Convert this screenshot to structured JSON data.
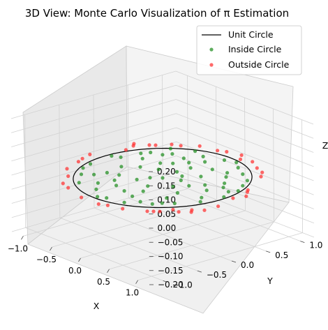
{
  "chart_data": {
    "type": "scatter",
    "title": "3D View: Monte Carlo Visualization of π Estimation",
    "xlabel": "X",
    "ylabel": "Y",
    "zlabel": "Z",
    "xlim": [
      -1.2,
      1.2
    ],
    "ylim": [
      -1.2,
      1.2
    ],
    "zlim": [
      -0.2,
      0.2
    ],
    "x_ticks": [
      "−1.0",
      "−0.5",
      "0.0",
      "0.5",
      "1.0"
    ],
    "y_ticks": [
      "−1.0",
      "−0.5",
      "0.0",
      "0.5",
      "1.0"
    ],
    "z_ticks": [
      "−0.20",
      "−0.15",
      "−0.10",
      "−0.05",
      "0.00",
      "0.05",
      "0.10",
      "0.15",
      "0.20"
    ],
    "x_tick_values": [
      -1.0,
      -0.5,
      0.0,
      0.5,
      1.0
    ],
    "y_tick_values": [
      -1.0,
      -0.5,
      0.0,
      0.5,
      1.0
    ],
    "z_tick_values": [
      -0.2,
      -0.15,
      -0.1,
      -0.05,
      0.0,
      0.05,
      0.1,
      0.15,
      0.2
    ],
    "grid": true,
    "legend_position": "upper-right",
    "circle": {
      "name": "Unit Circle",
      "radius": 1.0,
      "z": 0.0,
      "color": "#000000"
    },
    "inside_series": {
      "name": "Inside Circle",
      "color": "#1a8a1a"
    },
    "outside_series": {
      "name": "Outside Circle",
      "color": "#ff2a2a"
    },
    "inside_points": [
      [
        0.1,
        0.2
      ],
      [
        -0.3,
        0.4
      ],
      [
        0.5,
        -0.2
      ],
      [
        -0.6,
        -0.5
      ],
      [
        0.7,
        0.3
      ],
      [
        -0.2,
        -0.8
      ],
      [
        0.3,
        0.85
      ],
      [
        -0.85,
        0.1
      ],
      [
        0.9,
        -0.2
      ],
      [
        0.0,
        0.0
      ],
      [
        0.45,
        0.55
      ],
      [
        -0.55,
        0.6
      ],
      [
        0.6,
        -0.65
      ],
      [
        -0.4,
        -0.3
      ],
      [
        0.2,
        -0.45
      ],
      [
        -0.1,
        0.7
      ],
      [
        0.8,
        0.5
      ],
      [
        -0.7,
        -0.6
      ],
      [
        0.35,
        -0.85
      ],
      [
        -0.9,
        -0.3
      ],
      [
        0.15,
        0.95
      ],
      [
        -0.25,
        0.15
      ],
      [
        0.65,
        0.1
      ],
      [
        -0.45,
        0.85
      ],
      [
        0.5,
        0.75
      ],
      [
        -0.75,
        0.45
      ],
      [
        0.05,
        -0.6
      ],
      [
        -0.15,
        -0.25
      ],
      [
        0.25,
        0.35
      ],
      [
        -0.6,
        -0.1
      ],
      [
        0.75,
        -0.45
      ],
      [
        -0.35,
        -0.65
      ],
      [
        0.4,
        0.05
      ],
      [
        -0.05,
        0.45
      ],
      [
        0.85,
        0.25
      ],
      [
        -0.8,
        0.35
      ],
      [
        0.1,
        -0.9
      ],
      [
        -0.5,
        -0.8
      ],
      [
        0.55,
        -0.4
      ],
      [
        -0.2,
        0.55
      ],
      [
        0.3,
        -0.1
      ],
      [
        -0.65,
        0.25
      ],
      [
        0.7,
        0.65
      ],
      [
        -0.3,
        -0.45
      ],
      [
        0.15,
        0.6
      ],
      [
        -0.95,
        0.05
      ],
      [
        0.95,
        0.1
      ],
      [
        0.0,
        -0.95
      ],
      [
        0.0,
        0.9
      ],
      [
        -0.4,
        0.3
      ],
      [
        0.6,
        0.4
      ],
      [
        -0.1,
        -0.1
      ],
      [
        0.35,
        0.65
      ],
      [
        -0.55,
        -0.35
      ],
      [
        0.45,
        -0.7
      ],
      [
        -0.7,
        0.7
      ],
      [
        0.2,
        0.1
      ],
      [
        -0.15,
        -0.55
      ],
      [
        0.8,
        -0.1
      ],
      [
        -0.85,
        -0.45
      ],
      [
        0.5,
        0.2
      ],
      [
        -0.25,
        0.8
      ],
      [
        0.1,
        -0.3
      ],
      [
        -0.45,
        0.05
      ],
      [
        0.65,
        -0.55
      ],
      [
        -0.6,
        0.5
      ],
      [
        0.25,
        -0.65
      ],
      [
        -0.05,
        0.25
      ],
      [
        0.9,
        0.35
      ],
      [
        -0.35,
        0.6
      ]
    ],
    "outside_points": [
      [
        1.05,
        -0.45
      ],
      [
        1.1,
        -0.5
      ],
      [
        1.0,
        -0.6
      ],
      [
        1.15,
        -0.35
      ],
      [
        -1.05,
        0.45
      ],
      [
        -1.1,
        0.5
      ],
      [
        -0.95,
        0.6
      ],
      [
        -1.0,
        0.3
      ],
      [
        0.8,
        -0.8
      ],
      [
        0.75,
        -0.85
      ],
      [
        0.85,
        -0.75
      ],
      [
        0.3,
        -1.05
      ],
      [
        0.2,
        -1.1
      ],
      [
        -0.8,
        0.8
      ],
      [
        -0.7,
        0.85
      ],
      [
        -0.2,
        1.1
      ],
      [
        -0.3,
        1.05
      ],
      [
        0.95,
        0.45
      ],
      [
        1.05,
        0.15
      ],
      [
        1.0,
        0.4
      ],
      [
        -0.95,
        -0.6
      ],
      [
        -1.05,
        -0.35
      ],
      [
        0.45,
        1.0
      ],
      [
        0.6,
        0.95
      ],
      [
        -0.45,
        -1.0
      ],
      [
        -0.6,
        -0.95
      ],
      [
        0.0,
        1.15
      ],
      [
        0.1,
        1.05
      ],
      [
        -0.1,
        -1.1
      ],
      [
        1.1,
        0.3
      ],
      [
        -1.15,
        -0.1
      ],
      [
        0.9,
        -0.6
      ],
      [
        -0.9,
        0.65
      ],
      [
        0.7,
        0.85
      ],
      [
        -0.75,
        -0.75
      ],
      [
        1.15,
        -0.15
      ],
      [
        -1.1,
        -0.25
      ],
      [
        0.5,
        -1.0
      ],
      [
        -0.55,
        1.0
      ],
      [
        0.25,
        1.1
      ]
    ]
  },
  "legend": {
    "circle_label": "Unit Circle",
    "inside_label": "Inside Circle",
    "outside_label": "Outside Circle"
  }
}
